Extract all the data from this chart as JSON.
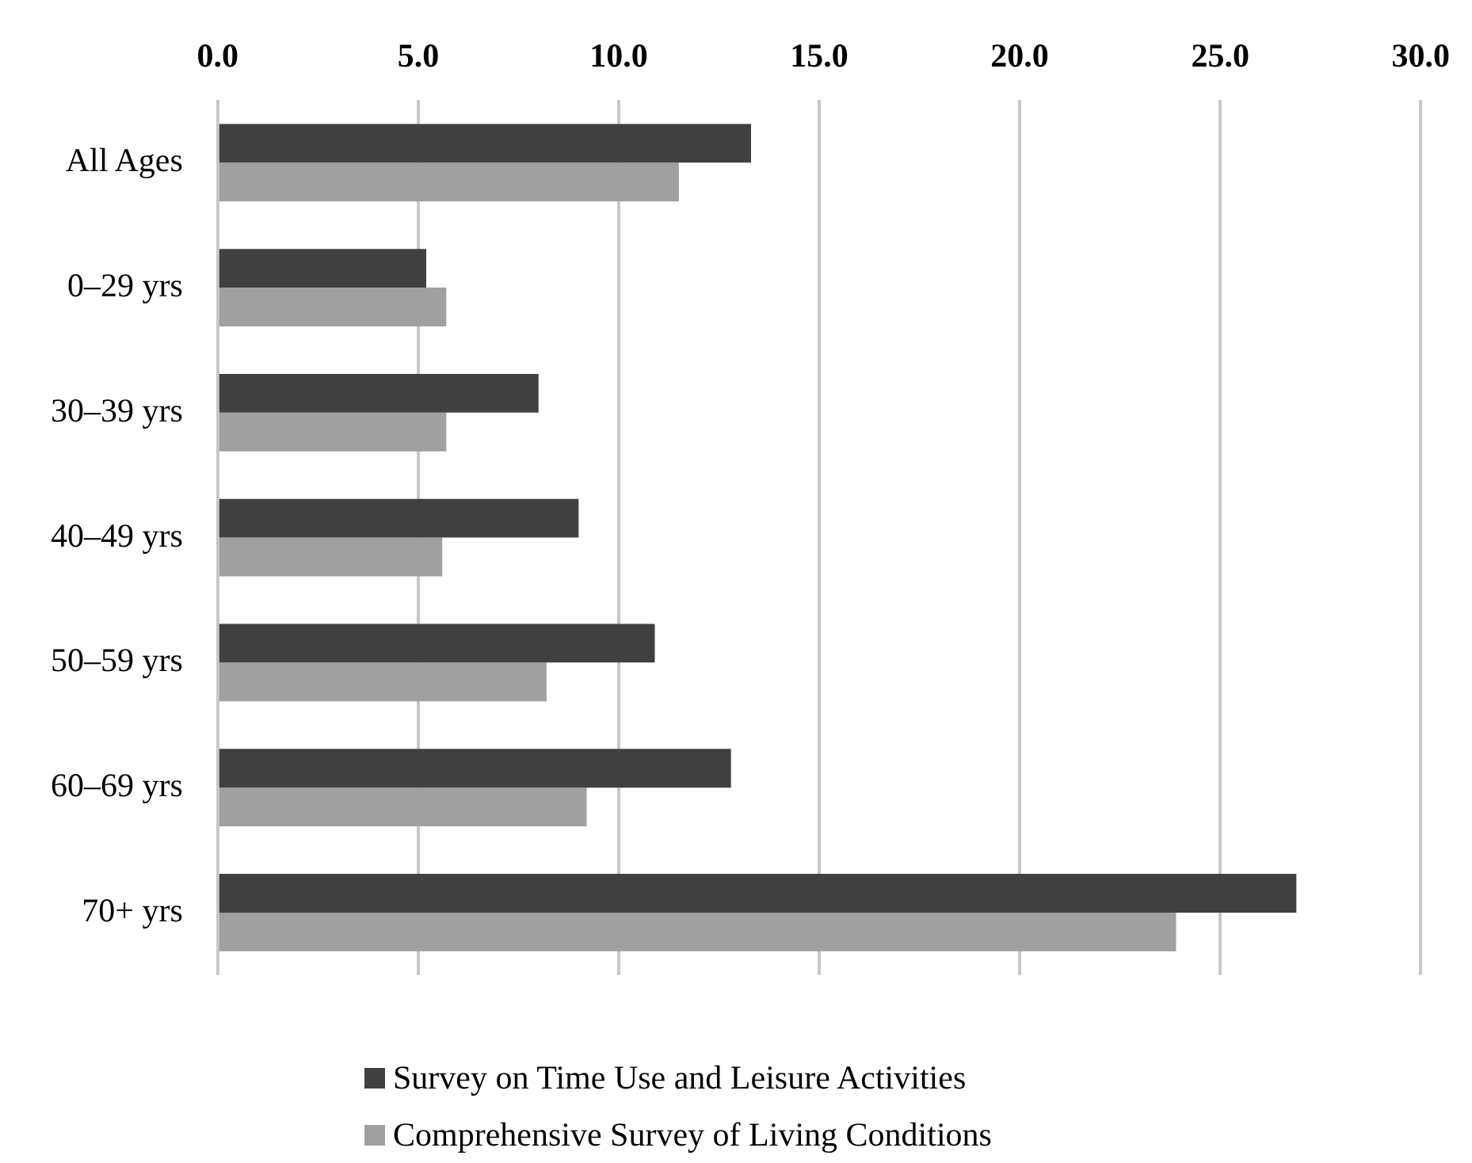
{
  "chart_data": {
    "type": "bar",
    "orientation": "horizontal",
    "categories": [
      "All Ages",
      "0–29 yrs",
      "30–39 yrs",
      "40–49 yrs",
      "50–59 yrs",
      "60–69 yrs",
      "70+ yrs"
    ],
    "series": [
      {
        "name": "Survey on Time Use and Leisure Activities",
        "color": "#404040",
        "values": [
          13.3,
          5.2,
          8.0,
          9.0,
          10.9,
          12.8,
          26.9
        ]
      },
      {
        "name": "Comprehensive Survey of Living Conditions",
        "color": "#a0a0a0",
        "values": [
          11.5,
          5.7,
          5.7,
          5.6,
          8.2,
          9.2,
          23.9
        ]
      }
    ],
    "xlim": [
      0,
      30
    ],
    "xticks": [
      {
        "value": 0,
        "label": "0.0"
      },
      {
        "value": 5,
        "label": "5.0"
      },
      {
        "value": 10,
        "label": "10.0"
      },
      {
        "value": 15,
        "label": "15.0"
      },
      {
        "value": 20,
        "label": "20.0"
      },
      {
        "value": 25,
        "label": "25.0"
      },
      {
        "value": 30,
        "label": "30.0"
      }
    ],
    "grid": "x",
    "legend": "bottom"
  }
}
